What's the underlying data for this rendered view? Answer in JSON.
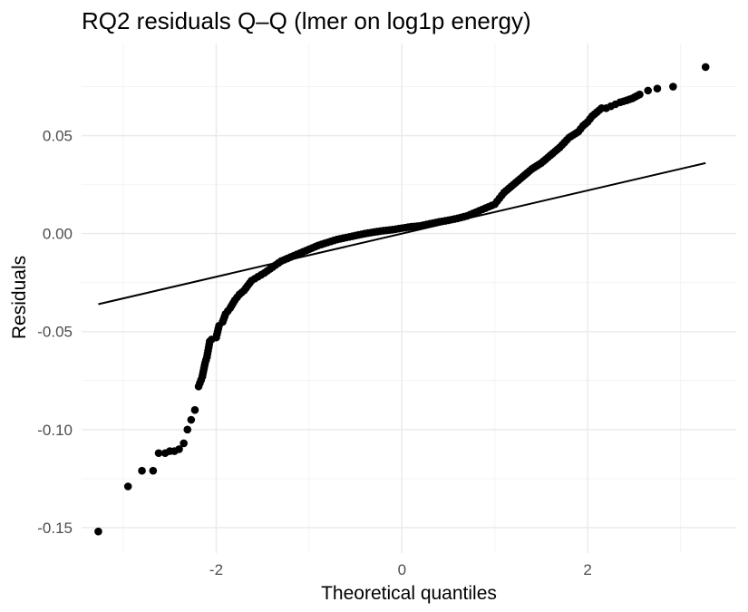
{
  "chart_data": {
    "type": "scatter",
    "title": "RQ2 residuals Q–Q (lmer on log1p energy)",
    "xlabel": "Theoretical quantiles",
    "ylabel": "Residuals",
    "xlim": [
      -3.45,
      3.6
    ],
    "ylim": [
      -0.163,
      0.097
    ],
    "x_ticks": [
      -2,
      0,
      2
    ],
    "x_tick_labels": [
      "-2",
      "0",
      "2"
    ],
    "y_ticks": [
      -0.15,
      -0.1,
      -0.05,
      0.0,
      0.05
    ],
    "y_tick_labels": [
      "-0.15",
      "-0.10",
      "-0.05",
      "0.00",
      "0.05"
    ],
    "grid": true,
    "reference_line": {
      "x": [
        -3.27,
        3.27
      ],
      "y": [
        -0.036,
        0.036
      ]
    },
    "points": {
      "x": [
        -3.27,
        -2.95,
        -2.8,
        -2.68,
        -2.62,
        -2.55,
        -2.5,
        -2.45,
        -2.4,
        -2.35,
        -2.31,
        -2.27,
        -2.23,
        -2.19,
        -2.15,
        -2.12,
        -2.1,
        -2.07,
        -2.05,
        -2.0,
        -1.97,
        -1.93,
        -1.9,
        -1.85,
        -1.8,
        -1.75,
        -1.7,
        -1.62,
        -1.55,
        -1.48,
        -1.42,
        -1.36,
        -1.3,
        -1.2,
        -1.1,
        -1.0,
        -0.9,
        -0.8,
        -0.7,
        -0.6,
        -0.5,
        -0.4,
        -0.3,
        -0.2,
        -0.1,
        0.0,
        0.1,
        0.2,
        0.3,
        0.4,
        0.5,
        0.6,
        0.7,
        0.8,
        0.9,
        1.0,
        1.05,
        1.1,
        1.15,
        1.2,
        1.3,
        1.4,
        1.5,
        1.6,
        1.7,
        1.8,
        1.9,
        1.95,
        2.0,
        2.05,
        2.1,
        2.15,
        2.2,
        2.25,
        2.3,
        2.35,
        2.42,
        2.48,
        2.56,
        2.65,
        2.75,
        2.92,
        3.27
      ],
      "y": [
        -0.152,
        -0.129,
        -0.121,
        -0.121,
        -0.112,
        -0.112,
        -0.111,
        -0.111,
        -0.11,
        -0.107,
        -0.1,
        -0.095,
        -0.09,
        -0.078,
        -0.073,
        -0.066,
        -0.063,
        -0.055,
        -0.054,
        -0.053,
        -0.047,
        -0.045,
        -0.041,
        -0.038,
        -0.034,
        -0.031,
        -0.029,
        -0.024,
        -0.022,
        -0.02,
        -0.018,
        -0.016,
        -0.014,
        -0.012,
        -0.01,
        -0.008,
        -0.006,
        -0.0045,
        -0.003,
        -0.002,
        -0.001,
        0.0,
        0.0008,
        0.0015,
        0.002,
        0.0028,
        0.0035,
        0.004,
        0.005,
        0.006,
        0.0068,
        0.0078,
        0.009,
        0.011,
        0.013,
        0.015,
        0.018,
        0.021,
        0.023,
        0.025,
        0.029,
        0.033,
        0.036,
        0.04,
        0.044,
        0.049,
        0.052,
        0.055,
        0.057,
        0.06,
        0.062,
        0.064,
        0.064,
        0.065,
        0.066,
        0.067,
        0.068,
        0.069,
        0.071,
        0.073,
        0.074,
        0.075,
        0.085
      ]
    }
  }
}
